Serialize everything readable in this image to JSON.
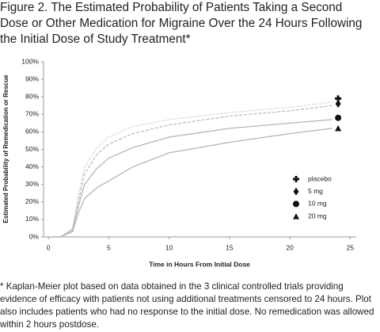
{
  "chart_data": {
    "type": "line",
    "title": "Figure 2. The Estimated Probability of Patients Taking a Second Dose or Other Medication for Migraine Over the 24 Hours Following the Initial Dose of Study Treatment*",
    "x_label": "Time in Hours From Initial Dose",
    "y_label": "Estimated Probability of Remedication or Rescue",
    "footnote": "* Kaplan-Meier plot based on data obtained in the 3 clinical controlled trials providing evidence of efficacy with patients not using additional treatments censored to 24 hours. Plot also includes patients who had no response to the initial dose. No remedication was allowed within 2 hours postdose.",
    "x": [
      0,
      1,
      2,
      2.5,
      3,
      4,
      5,
      7,
      10,
      15,
      20,
      23.5
    ],
    "end_x": 24,
    "marker_color": "#111111",
    "series": [
      {
        "name": "placebo",
        "color": "#c8c8c8",
        "line_style": "dotted",
        "marker": "cross",
        "values": [
          0,
          0,
          5,
          24,
          40,
          51,
          57,
          63,
          67,
          71,
          74,
          77
        ],
        "end_value": 79
      },
      {
        "name": "5 mg",
        "color": "#bdbdbd",
        "line_style": "dashed",
        "marker": "diamond",
        "values": [
          0,
          0,
          4,
          21,
          36,
          47,
          53,
          59,
          64,
          69,
          72,
          75
        ],
        "end_value": 76
      },
      {
        "name": "10 mg",
        "color": "#b5b5b5",
        "line_style": "solid",
        "marker": "circle",
        "values": [
          0,
          0,
          4,
          18,
          30,
          39,
          45,
          51,
          57,
          62,
          65,
          67
        ],
        "end_value": 68
      },
      {
        "name": "20 mg",
        "color": "#b5b5b5",
        "line_style": "solid",
        "marker": "triangle",
        "values": [
          0,
          0,
          3,
          14,
          22,
          28,
          32,
          40,
          48,
          54,
          59,
          62
        ],
        "end_value": 62
      }
    ],
    "xlim": [
      -0.4,
      25.5
    ],
    "ylim": [
      0,
      100
    ],
    "xticks": [
      0,
      5,
      10,
      15,
      20,
      25
    ],
    "yticks": [
      {
        "value": 0,
        "label": "0%"
      },
      {
        "value": 10,
        "label": "10%"
      },
      {
        "value": 20,
        "label": "20%"
      },
      {
        "value": 30,
        "label": "30%"
      },
      {
        "value": 40,
        "label": "40%"
      },
      {
        "value": 50,
        "label": "50%"
      },
      {
        "value": 60,
        "label": "60%"
      },
      {
        "value": 70,
        "label": "70%"
      },
      {
        "value": 80,
        "label": "80%"
      },
      {
        "value": 90,
        "label": "90%"
      },
      {
        "value": 100,
        "label": "100%"
      }
    ]
  }
}
